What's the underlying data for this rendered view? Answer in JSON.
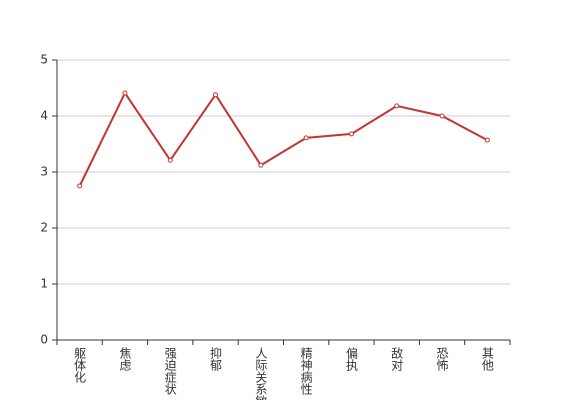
{
  "chart_data": {
    "type": "line",
    "categories": [
      "躯体化",
      "焦虑",
      "强迫症状",
      "抑郁",
      "人际关系敏感",
      "精神病性",
      "偏执",
      "敌对",
      "恐怖",
      "其他"
    ],
    "series": [
      {
        "color": "#c23531",
        "values": [
          2.75,
          4.41,
          3.21,
          4.38,
          3.12,
          3.61,
          3.68,
          4.18,
          4.0,
          3.57
        ]
      }
    ],
    "ylim": [
      0,
      5
    ],
    "yticks": [
      0,
      1,
      2,
      3,
      4,
      5
    ],
    "grid": true
  }
}
